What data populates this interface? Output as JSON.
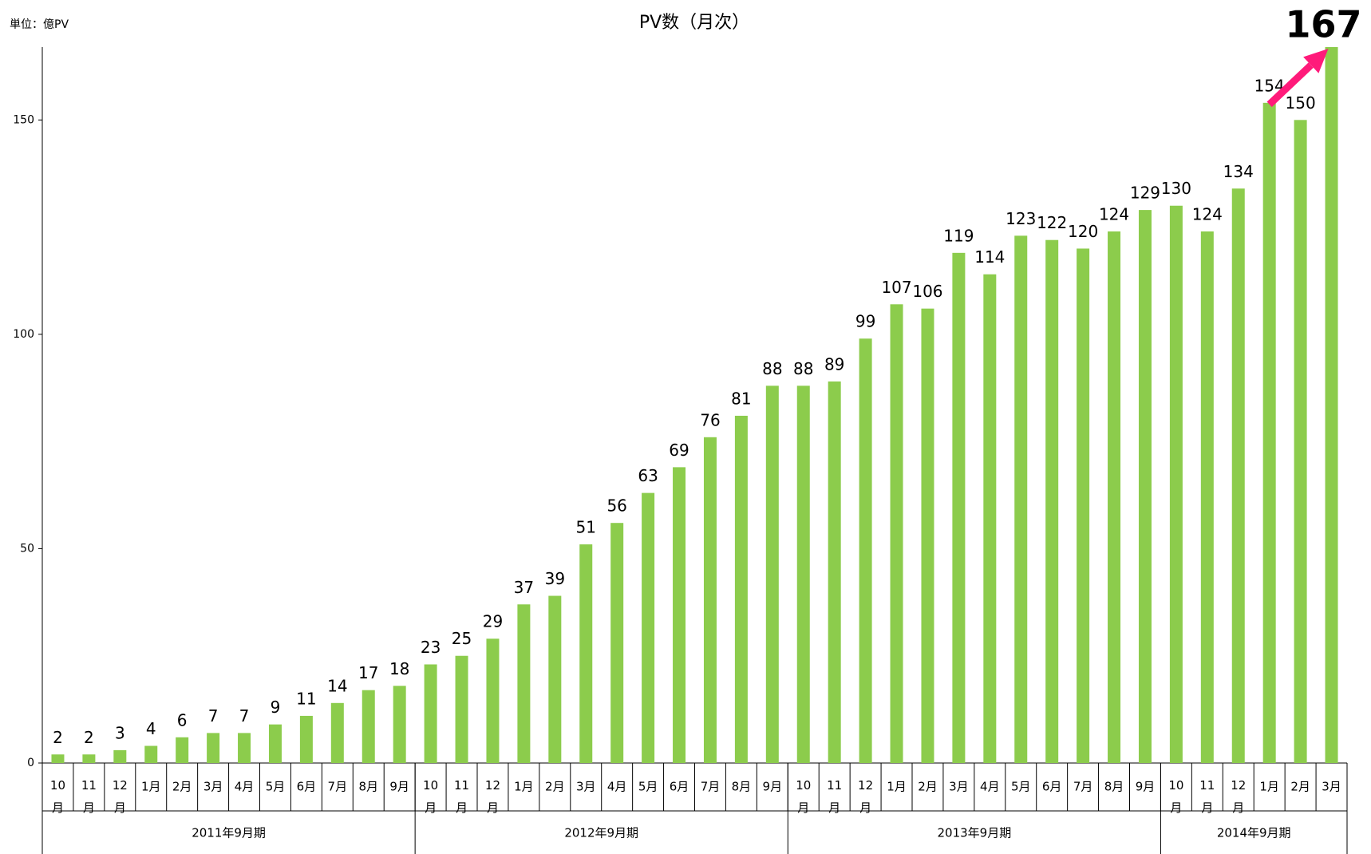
{
  "chart_data": {
    "type": "bar",
    "title": "PV数（月次）",
    "unit_label": "単位：億PV",
    "categories": [
      "10月",
      "11月",
      "12月",
      "1月",
      "2月",
      "3月",
      "4月",
      "5月",
      "6月",
      "7月",
      "8月",
      "9月",
      "10月",
      "11月",
      "12月",
      "1月",
      "2月",
      "3月",
      "4月",
      "5月",
      "6月",
      "7月",
      "8月",
      "9月",
      "10月",
      "11月",
      "12月",
      "1月",
      "2月",
      "3月",
      "4月",
      "5月",
      "6月",
      "7月",
      "8月",
      "9月",
      "10月",
      "11月",
      "12月",
      "1月",
      "2月",
      "3月"
    ],
    "periods": [
      "2011年9月期",
      "2011年9月期",
      "2011年9月期",
      "2011年9月期",
      "2011年9月期",
      "2011年9月期",
      "2011年9月期",
      "2011年9月期",
      "2011年9月期",
      "2011年9月期",
      "2011年9月期",
      "2011年9月期",
      "2012年9月期",
      "2012年9月期",
      "2012年9月期",
      "2012年9月期",
      "2012年9月期",
      "2012年9月期",
      "2012年9月期",
      "2012年9月期",
      "2012年9月期",
      "2012年9月期",
      "2012年9月期",
      "2012年9月期",
      "2013年9月期",
      "2013年9月期",
      "2013年9月期",
      "2013年9月期",
      "2013年9月期",
      "2013年9月期",
      "2013年9月期",
      "2013年9月期",
      "2013年9月期",
      "2013年9月期",
      "2013年9月期",
      "2013年9月期",
      "2014年9月期",
      "2014年9月期",
      "2014年9月期",
      "2014年9月期",
      "2014年9月期",
      "2014年9月期"
    ],
    "values": [
      2,
      2,
      3,
      4,
      6,
      7,
      7,
      9,
      11,
      14,
      17,
      18,
      23,
      25,
      29,
      37,
      39,
      51,
      56,
      63,
      69,
      76,
      81,
      88,
      88,
      89,
      99,
      107,
      106,
      119,
      114,
      123,
      122,
      120,
      124,
      129,
      130,
      124,
      134,
      154,
      150,
      167
    ],
    "color": "#8ccc4c",
    "arrow_color": "#ff1a7a",
    "ylim": [
      0,
      167
    ],
    "yticks": [
      0,
      50,
      100,
      150
    ]
  }
}
